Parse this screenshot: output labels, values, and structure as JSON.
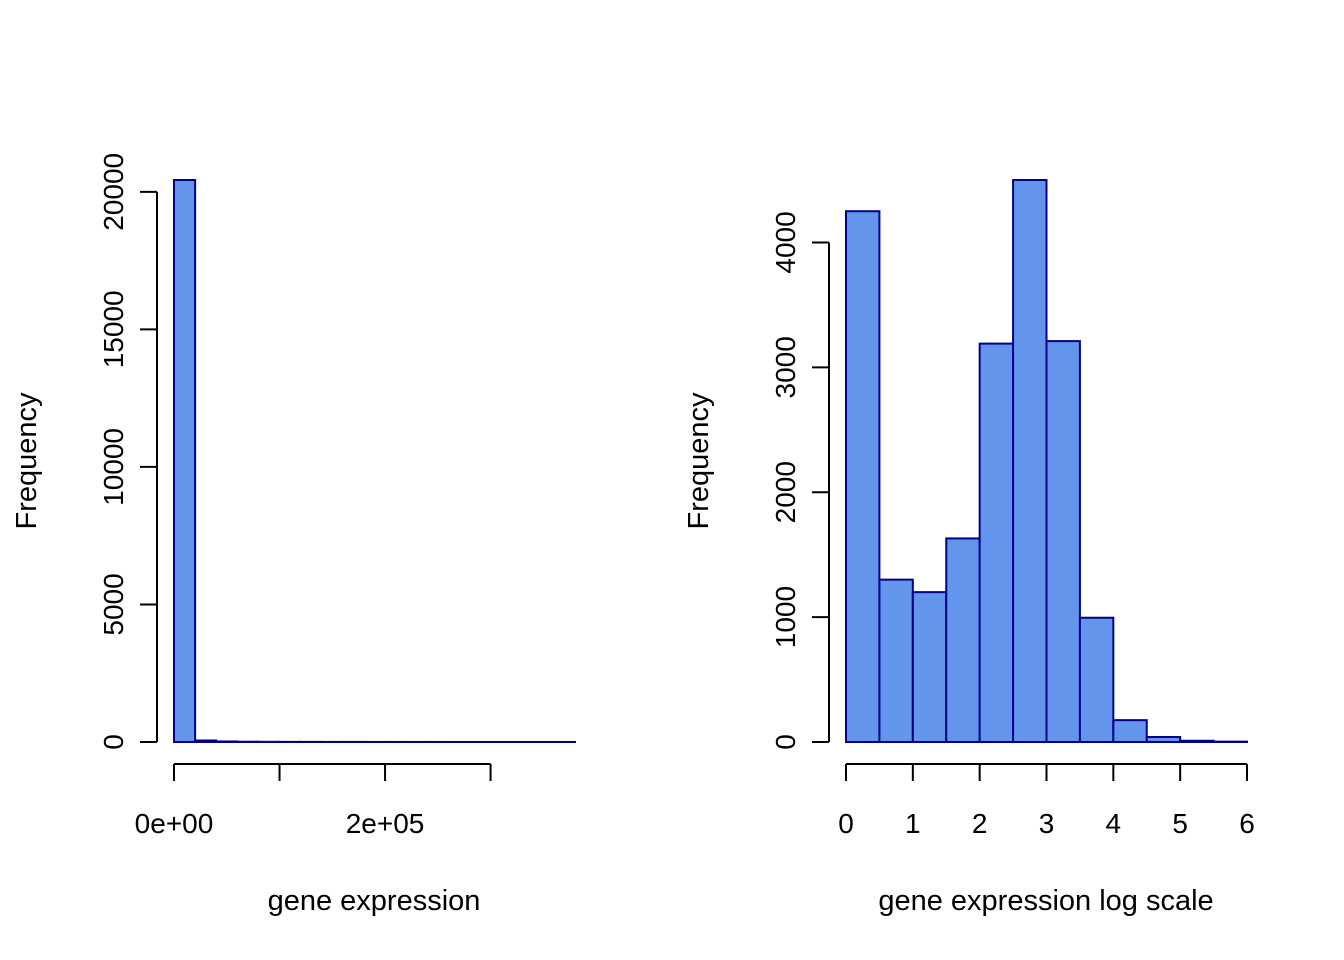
{
  "chart_data": [
    {
      "type": "bar",
      "subtype": "histogram",
      "title": "",
      "xlabel": "gene expression",
      "ylabel": "Frequency",
      "bin_edges": [
        0,
        20000,
        40000,
        60000,
        80000,
        100000,
        120000,
        140000,
        160000,
        180000,
        200000,
        220000,
        240000,
        260000,
        280000,
        300000,
        320000,
        340000,
        360000,
        380000
      ],
      "values": [
        20430,
        55,
        20,
        10,
        7,
        5,
        4,
        3,
        3,
        2,
        2,
        2,
        2,
        1,
        1,
        1,
        1,
        1,
        1
      ],
      "xlim": [
        0,
        380000
      ],
      "ylim": [
        0,
        20430
      ],
      "x_ticks": [
        0,
        100000,
        200000,
        300000
      ],
      "x_tick_labels": [
        "0e+00",
        "",
        "2e+05",
        ""
      ],
      "y_ticks": [
        0,
        5000,
        10000,
        15000,
        20000
      ],
      "y_tick_labels": [
        "0",
        "5000",
        "10000",
        "15000",
        "20000"
      ],
      "grid": false,
      "colors": {
        "fill": "#6495ED",
        "border": "#00008B"
      }
    },
    {
      "type": "bar",
      "subtype": "histogram",
      "title": "",
      "xlabel": "gene expression log scale",
      "ylabel": "Frequency",
      "bin_edges": [
        0,
        0.5,
        1,
        1.5,
        2,
        2.5,
        3,
        3.5,
        4,
        4.5,
        5,
        5.5,
        6
      ],
      "values": [
        4250,
        1300,
        1200,
        1630,
        3190,
        4500,
        3210,
        995,
        175,
        40,
        10,
        3
      ],
      "xlim": [
        0,
        6
      ],
      "ylim": [
        0,
        4500
      ],
      "x_ticks": [
        0,
        1,
        2,
        3,
        4,
        5,
        6
      ],
      "x_tick_labels": [
        "0",
        "1",
        "2",
        "3",
        "4",
        "5",
        "6"
      ],
      "y_ticks": [
        0,
        1000,
        2000,
        3000,
        4000
      ],
      "y_tick_labels": [
        "0",
        "1000",
        "2000",
        "3000",
        "4000"
      ],
      "grid": false,
      "colors": {
        "fill": "#6495ED",
        "border": "#00008B"
      }
    }
  ]
}
